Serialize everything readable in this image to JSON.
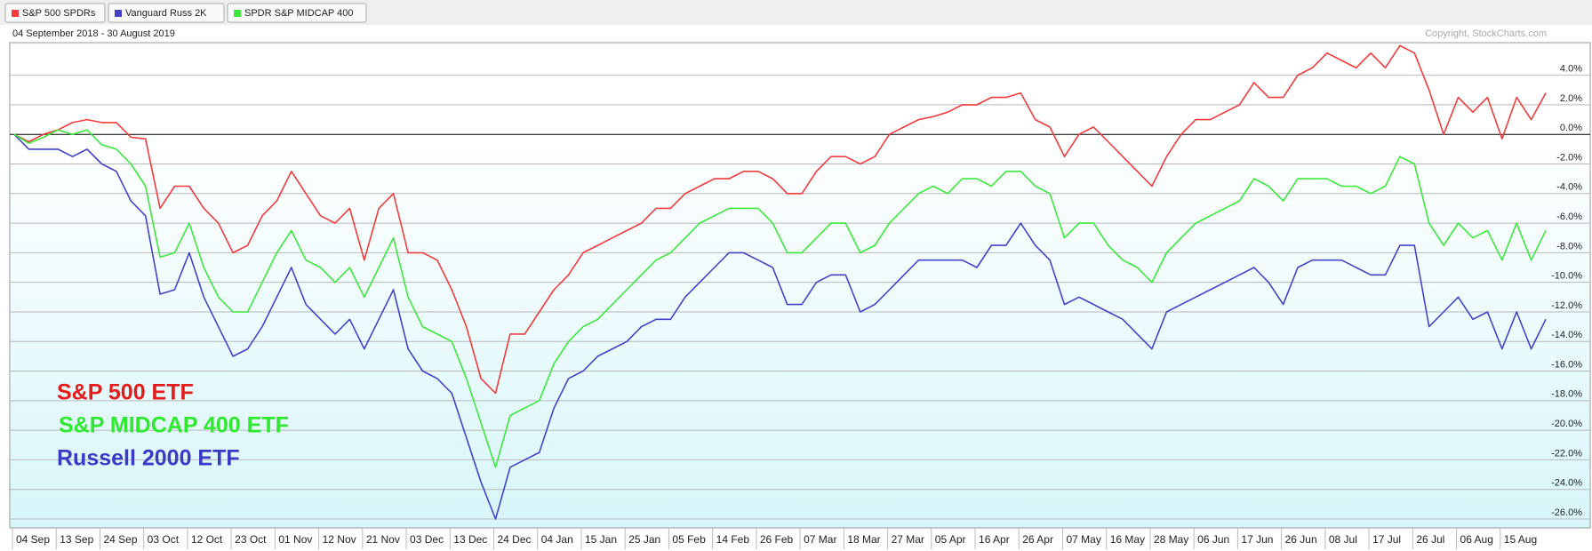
{
  "chart_data": {
    "type": "line",
    "subtitle": "04 September 2018 - 30 August 2019",
    "copyright": "Copyright, StockCharts.com",
    "categories": [
      "04 Sep",
      null,
      null,
      "13 Sep",
      null,
      null,
      "24 Sep",
      null,
      null,
      "03 Oct",
      null,
      null,
      "12 Oct",
      null,
      null,
      "23 Oct",
      null,
      null,
      "01 Nov",
      null,
      null,
      "12 Nov",
      null,
      null,
      "21 Nov",
      null,
      null,
      "03 Dec",
      null,
      null,
      "13 Dec",
      null,
      null,
      "24 Dec",
      null,
      null,
      "04 Jan",
      null,
      null,
      "15 Jan",
      null,
      null,
      "25 Jan",
      null,
      null,
      "05 Feb",
      null,
      null,
      "14 Feb",
      null,
      null,
      "26 Feb",
      null,
      null,
      "07 Mar",
      null,
      null,
      "18 Mar",
      null,
      null,
      "27 Mar",
      null,
      null,
      "05 Apr",
      null,
      null,
      "16 Apr",
      null,
      null,
      "26 Apr",
      null,
      null,
      "07 May",
      null,
      null,
      "16 May",
      null,
      null,
      "28 May",
      null,
      null,
      "06 Jun",
      null,
      null,
      "17 Jun",
      null,
      null,
      "26 Jun",
      null,
      null,
      "08 Jul",
      null,
      null,
      "17 Jul",
      null,
      null,
      "26 Jul",
      null,
      null,
      "06 Aug",
      null,
      null,
      "15 Aug",
      null,
      null,
      null
    ],
    "series": [
      {
        "name": "S&P 500 SPDRs",
        "color": "#f03c3c",
        "values": [
          0,
          -0.5,
          0,
          0.3,
          0.8,
          1.0,
          0.8,
          0.8,
          -0.2,
          -0.3,
          -5,
          -3.5,
          -3.5,
          -5,
          -6,
          -8,
          -7.5,
          -5.5,
          -4.5,
          -2.5,
          -4,
          -5.5,
          -6,
          -5,
          -8.5,
          -5,
          -4,
          -8,
          -8,
          -8.5,
          -10.5,
          -13,
          -16.5,
          -17.5,
          -13.5,
          -13.5,
          -12,
          -10.5,
          -9.5,
          -8,
          -7.5,
          -7,
          -6.5,
          -6,
          -5,
          -5,
          -4,
          -3.5,
          -3,
          -3,
          -2.5,
          -2.5,
          -3,
          -4,
          -4,
          -2.5,
          -1.5,
          -1.5,
          -2,
          -1.5,
          0,
          0.5,
          1,
          1.2,
          1.5,
          2,
          2,
          2.5,
          2.5,
          2.8,
          1,
          0.5,
          -1.5,
          0,
          0.5,
          -0.5,
          -1.5,
          -2.5,
          -3.5,
          -1.5,
          0,
          1,
          1,
          1.5,
          2,
          3.5,
          2.5,
          2.5,
          4,
          4.5,
          5.5,
          5,
          4.5,
          5.5,
          4.5,
          6,
          5.5,
          3,
          0,
          2.5,
          1.5,
          2.5,
          -0.3,
          2.5,
          1,
          2.8
        ]
      },
      {
        "name": "Vanguard Russ 2K",
        "color": "#4343c8",
        "values": [
          0,
          -1,
          -1,
          -1,
          -1.5,
          -1,
          -2,
          -2.5,
          -4.5,
          -5.5,
          -10.8,
          -10.5,
          -8,
          -11,
          -13,
          -15,
          -14.5,
          -13,
          -11,
          -9,
          -11.5,
          -12.5,
          -13.5,
          -12.5,
          -14.5,
          -12.5,
          -10.5,
          -14.5,
          -16,
          -16.5,
          -17.5,
          -20.5,
          -23.5,
          -26,
          -22.5,
          -22,
          -21.5,
          -18.5,
          -16.5,
          -16,
          -15,
          -14.5,
          -14,
          -13,
          -12.5,
          -12.5,
          -11,
          -10,
          -9,
          -8,
          -8,
          -8.5,
          -9,
          -11.5,
          -11.5,
          -10,
          -9.5,
          -9.5,
          -12,
          -11.5,
          -10.5,
          -9.5,
          -8.5,
          -8.5,
          -8.5,
          -8.5,
          -9,
          -7.5,
          -7.5,
          -6,
          -7.5,
          -8.5,
          -11.5,
          -11,
          -11.5,
          -12,
          -12.5,
          -13.5,
          -14.5,
          -12,
          -11.5,
          -11,
          -10.5,
          -10,
          -9.5,
          -9,
          -10,
          -11.5,
          -9,
          -8.5,
          -8.5,
          -8.5,
          -9,
          -9.5,
          -9.5,
          -7.5,
          -7.5,
          -13,
          -12,
          -11,
          -12.5,
          -12,
          -14.5,
          -12,
          -14.5,
          -12.5
        ]
      },
      {
        "name": "SPDR S&P MIDCAP 400",
        "color": "#3de83d",
        "values": [
          0,
          -0.6,
          -0.2,
          0.3,
          0,
          0.3,
          -0.7,
          -1,
          -2,
          -3.5,
          -8.3,
          -8,
          -6,
          -9,
          -11,
          -12,
          -12,
          -10,
          -8,
          -6.5,
          -8.5,
          -9,
          -10,
          -9,
          -11,
          -9,
          -7,
          -11,
          -13,
          -13.5,
          -14,
          -16.5,
          -19.5,
          -22.5,
          -19,
          -18.5,
          -18,
          -15.5,
          -14,
          -13,
          -12.5,
          -11.5,
          -10.5,
          -9.5,
          -8.5,
          -8,
          -7,
          -6,
          -5.5,
          -5,
          -5,
          -5,
          -6,
          -8,
          -8,
          -7,
          -6,
          -6,
          -8,
          -7.5,
          -6,
          -5,
          -4,
          -3.5,
          -4,
          -3,
          -3,
          -3.5,
          -2.5,
          -2.5,
          -3.5,
          -4,
          -7,
          -6,
          -6,
          -7.5,
          -8.5,
          -9,
          -10,
          -8,
          -7,
          -6,
          -5.5,
          -5,
          -4.5,
          -3,
          -3.5,
          -4.5,
          -3,
          -3,
          -3,
          -3.5,
          -3.5,
          -4,
          -3.5,
          -1.5,
          -2,
          -6,
          -7.5,
          -6,
          -7,
          -6.5,
          -8.5,
          -6,
          -8.5,
          -6.5
        ]
      }
    ],
    "annotations": [
      {
        "text": "S&P 500 ETF",
        "color": "#e41c1c"
      },
      {
        "text": "S&P MIDCAP 400 ETF",
        "color": "#2fe82f"
      },
      {
        "text": "Russell 2000 ETF",
        "color": "#3a3ac8"
      }
    ],
    "ylim": [
      -26.6,
      6.2
    ],
    "yticks": [
      {
        "value": -26,
        "label": "-26.0%"
      },
      {
        "value": -24,
        "label": "-24.0%"
      },
      {
        "value": -22,
        "label": "-22.0%"
      },
      {
        "value": -20,
        "label": "-20.0%"
      },
      {
        "value": -18,
        "label": "-18.0%"
      },
      {
        "value": -16,
        "label": "-16.0%"
      },
      {
        "value": -14,
        "label": "-14.0%"
      },
      {
        "value": -12,
        "label": "-12.0%"
      },
      {
        "value": -10,
        "label": "-10.0%"
      },
      {
        "value": -8,
        "label": "-8.0%"
      },
      {
        "value": -6,
        "label": "-6.0%"
      },
      {
        "value": -4,
        "label": "-4.0%"
      },
      {
        "value": -2,
        "label": "-2.0%"
      },
      {
        "value": 0,
        "label": "0.0%"
      },
      {
        "value": 2,
        "label": "2.0%"
      },
      {
        "value": 4,
        "label": "4.0%"
      }
    ],
    "grid": true
  }
}
